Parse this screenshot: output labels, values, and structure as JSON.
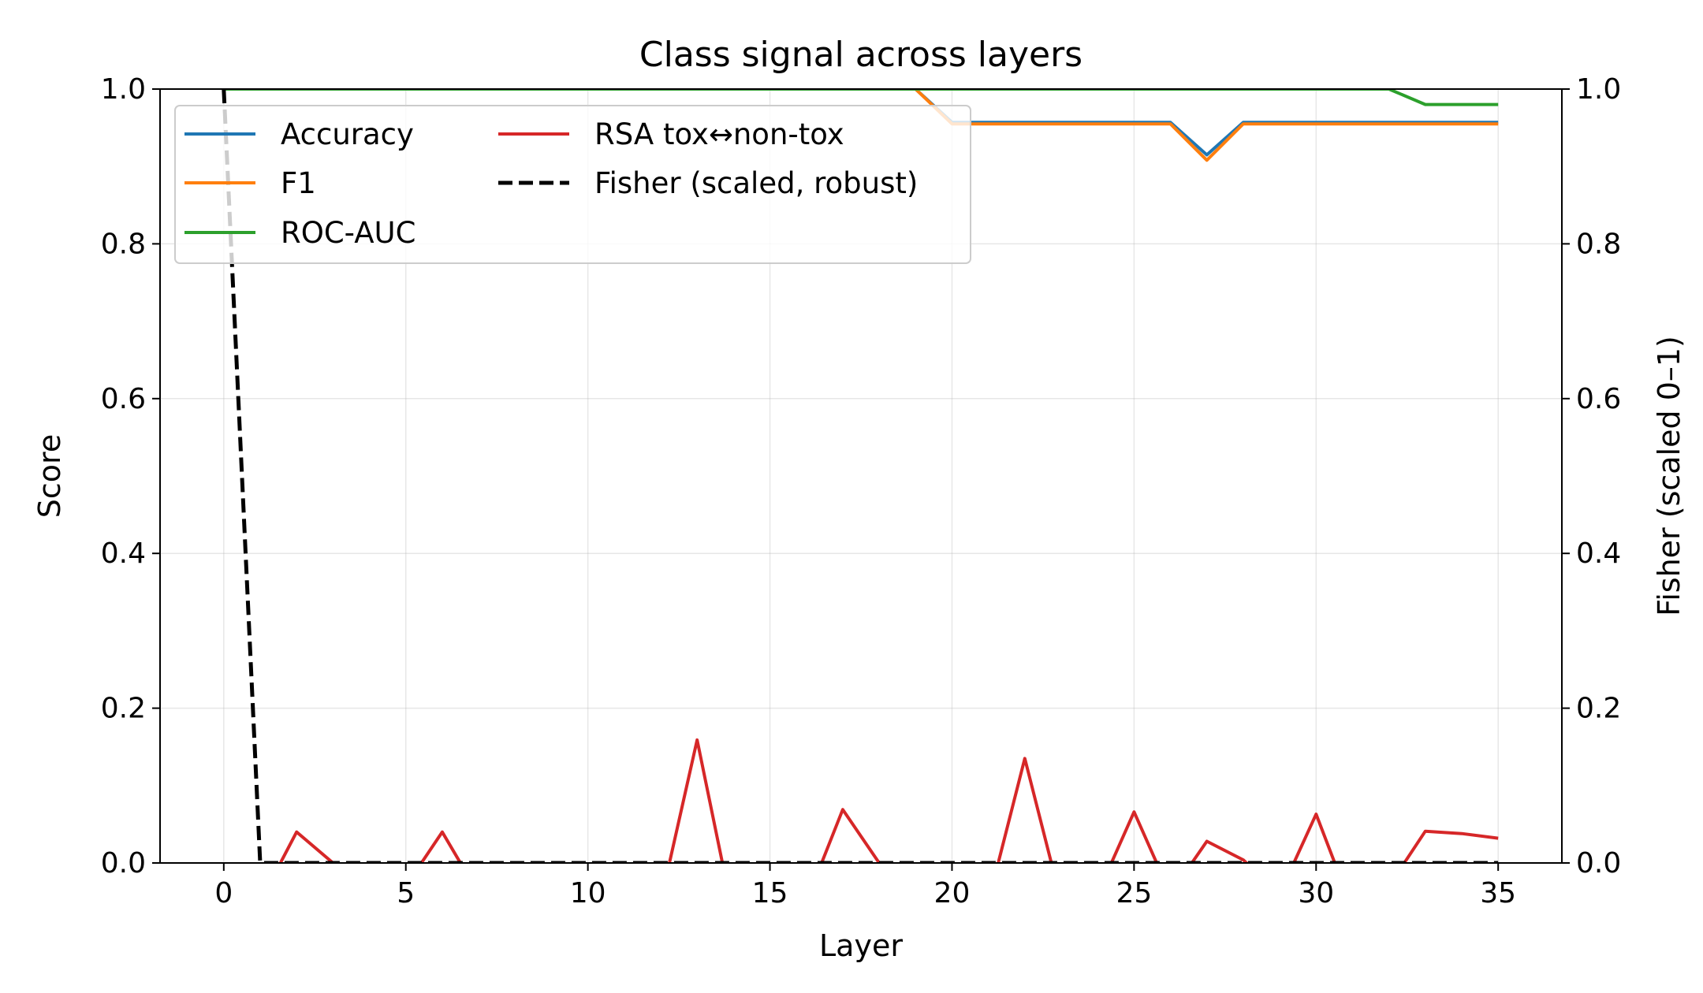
{
  "chart_data": {
    "type": "line",
    "title": "Class signal across layers",
    "xlabel": "Layer",
    "ylabel": "Score",
    "y2label": "Fisher (scaled 0–1)",
    "xlim": [
      -1.75,
      36.75
    ],
    "ylim": [
      0,
      1
    ],
    "y2lim": [
      0,
      1
    ],
    "x_ticks": [
      0,
      5,
      10,
      15,
      20,
      25,
      30,
      35
    ],
    "y_ticks": [
      0.0,
      0.2,
      0.4,
      0.6,
      0.8,
      1.0
    ],
    "y_tick_labels": [
      "0.0",
      "0.2",
      "0.4",
      "0.6",
      "0.8",
      "1.0"
    ],
    "y2_ticks": [
      0.0,
      0.2,
      0.4,
      0.6,
      0.8,
      1.0
    ],
    "y2_tick_labels": [
      "0.0",
      "0.2",
      "0.4",
      "0.6",
      "0.8",
      "1.0"
    ],
    "grid": true,
    "legend_position": "upper-left",
    "x": [
      0,
      1,
      2,
      3,
      4,
      5,
      6,
      7,
      8,
      9,
      10,
      11,
      12,
      13,
      14,
      15,
      16,
      17,
      18,
      19,
      20,
      21,
      22,
      23,
      24,
      25,
      26,
      27,
      28,
      29,
      30,
      31,
      32,
      33,
      34,
      35
    ],
    "series": [
      {
        "name": "Accuracy",
        "color": "#1f77b4",
        "axis": "left",
        "dash": "solid",
        "values": [
          1,
          1,
          1,
          1,
          1,
          1,
          1,
          1,
          1,
          1,
          1,
          1,
          1,
          1,
          1,
          1,
          1,
          1,
          1,
          1,
          0.957,
          0.957,
          0.957,
          0.957,
          0.957,
          0.957,
          0.957,
          0.915,
          0.957,
          0.957,
          0.957,
          0.957,
          0.957,
          0.957,
          0.957,
          0.957
        ]
      },
      {
        "name": "F1",
        "color": "#ff7f0e",
        "axis": "left",
        "dash": "solid",
        "values": [
          1,
          1,
          1,
          1,
          1,
          1,
          1,
          1,
          1,
          1,
          1,
          1,
          1,
          1,
          1,
          1,
          1,
          1,
          1,
          1,
          0.955,
          0.955,
          0.955,
          0.955,
          0.955,
          0.955,
          0.955,
          0.908,
          0.955,
          0.955,
          0.955,
          0.955,
          0.955,
          0.955,
          0.955,
          0.955
        ]
      },
      {
        "name": "ROC-AUC",
        "color": "#2ca02c",
        "axis": "left",
        "dash": "solid",
        "values": [
          1,
          1,
          1,
          1,
          1,
          1,
          1,
          1,
          1,
          1,
          1,
          1,
          1,
          1,
          1,
          1,
          1,
          1,
          1,
          1,
          1,
          1,
          1,
          1,
          1,
          1,
          1,
          1,
          1,
          1,
          1,
          1,
          1,
          0.98,
          0.98,
          0.98
        ]
      },
      {
        "name": "RSA tox↔non-tox",
        "color": "#d62728",
        "axis": "left",
        "dash": "solid",
        "values": [
          -0.05,
          -0.05,
          0.04,
          0.0,
          -0.03,
          -0.03,
          0.04,
          -0.04,
          -0.05,
          -0.06,
          -0.05,
          -0.05,
          -0.05,
          0.159,
          -0.07,
          -0.05,
          -0.05,
          0.069,
          0.0,
          -0.05,
          -0.07,
          -0.05,
          0.135,
          -0.05,
          -0.04,
          0.066,
          -0.04,
          0.028,
          0.004,
          -0.04,
          0.063,
          -0.06,
          -0.03,
          0.041,
          0.038,
          0.032
        ]
      },
      {
        "name": "Fisher (scaled, robust)",
        "color": "#000000",
        "axis": "right",
        "dash": "dashed",
        "values": [
          1.0,
          0.0,
          0.0,
          0.0,
          0.0,
          0.0,
          0.0,
          0.0,
          0.0,
          0.0,
          0.0,
          0.0,
          0.0,
          0.0,
          0.0,
          0.0,
          0.0,
          0.0,
          0.0,
          0.0,
          0.0,
          0.0,
          0.0,
          0.0,
          0.0,
          0.0,
          0.0,
          0.0,
          0.0,
          0.0,
          0.0,
          0.0,
          0.0,
          0.0,
          0.0,
          0.0
        ]
      }
    ]
  }
}
